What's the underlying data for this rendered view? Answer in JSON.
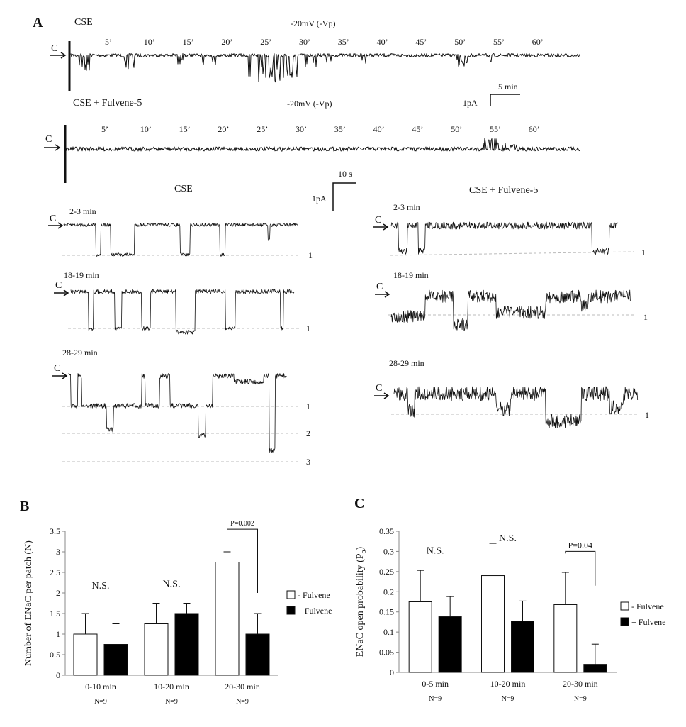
{
  "panel_a": {
    "label": "A",
    "long_traces": [
      {
        "condition": "CSE",
        "voltage": "-20mV (-Vp)",
        "closed": "C",
        "minute_marks": [
          "5’",
          "10’",
          "15’",
          "20’",
          "25’",
          "30’",
          "35’",
          "40’",
          "45’",
          "50’",
          "55’",
          "60’"
        ]
      },
      {
        "condition": "CSE + Fulvene-5",
        "voltage": "-20mV (-Vp)",
        "closed": "C",
        "minute_marks": [
          "5’",
          "10’",
          "15’",
          "20’",
          "25’",
          "30’",
          "35’",
          "40’",
          "45’",
          "50’",
          "55’",
          "60’"
        ]
      }
    ],
    "scale_long": {
      "current": "1pA",
      "time": "5 min"
    },
    "scale_short": {
      "current": "1pA",
      "time": "10 s"
    },
    "expanded": [
      {
        "column": "CSE",
        "segments": [
          {
            "time": "2-3 min",
            "closed": "C",
            "levels": [
              "1"
            ]
          },
          {
            "time": "18-19 min",
            "closed": "C",
            "levels": [
              "1"
            ]
          },
          {
            "time": "28-29 min",
            "closed": "C",
            "levels": [
              "1",
              "2",
              "3"
            ]
          }
        ]
      },
      {
        "column": "CSE + Fulvene-5",
        "segments": [
          {
            "time": "2-3 min",
            "closed": "C",
            "levels": [
              "1"
            ]
          },
          {
            "time": "18-19 min",
            "closed": "C",
            "levels": [
              "1"
            ]
          },
          {
            "time": "28-29 min",
            "closed": "C",
            "levels": [
              "1"
            ]
          }
        ]
      }
    ]
  },
  "chart_data": [
    {
      "panel": "B",
      "type": "bar",
      "title": "",
      "ylabel": "Number of ENaC per patch (N)",
      "xlabel": "",
      "ylim": [
        0,
        3.5
      ],
      "yticks": [
        "0",
        "0.5",
        "1",
        "1.5",
        "2",
        "2.5",
        "3",
        "3.5"
      ],
      "categories": [
        "0-10 min",
        "10-20 min",
        "20-30 min"
      ],
      "n_labels": [
        "N=9",
        "N=9",
        "N=9"
      ],
      "series": [
        {
          "name": "- Fulvene",
          "values": [
            1.0,
            1.25,
            2.75
          ],
          "errors": [
            0.5,
            0.5,
            0.25
          ],
          "color": "#ffffff"
        },
        {
          "name": "+ Fulvene",
          "values": [
            0.75,
            1.5,
            1.0
          ],
          "errors": [
            0.5,
            0.25,
            0.5
          ],
          "color": "#000000"
        }
      ],
      "annotations": [
        {
          "text": "N.S.",
          "category": 0
        },
        {
          "text": "N.S.",
          "category": 1
        },
        {
          "text": "P=0.002",
          "category": 2,
          "bracket": true
        }
      ],
      "legend_position": "right"
    },
    {
      "panel": "C",
      "type": "bar",
      "title": "",
      "ylabel": "ENaC open probability (P",
      "ylabel_sub": "o",
      "ylabel_end": ")",
      "xlabel": "",
      "ylim": [
        0,
        0.35
      ],
      "yticks": [
        "0",
        "0.05",
        "0.1",
        "0.15",
        "0.2",
        "0.25",
        "0.3",
        "0.35"
      ],
      "categories": [
        "0-5 min",
        "10-20 min",
        "20-30 min"
      ],
      "n_labels": [
        "N=9",
        "N=9",
        "N=9"
      ],
      "series": [
        {
          "name": "- Fulvene",
          "values": [
            0.175,
            0.24,
            0.168
          ],
          "errors": [
            0.078,
            0.08,
            0.08
          ],
          "color": "#ffffff"
        },
        {
          "name": "+ Fulvene",
          "values": [
            0.138,
            0.127,
            0.02
          ],
          "errors": [
            0.05,
            0.05,
            0.05
          ],
          "color": "#000000"
        }
      ],
      "annotations": [
        {
          "text": "N.S.",
          "category": 0
        },
        {
          "text": "N.S.",
          "category": 1
        },
        {
          "text": "P=0.04",
          "category": 2,
          "bracket": true
        }
      ],
      "legend_position": "right"
    }
  ]
}
